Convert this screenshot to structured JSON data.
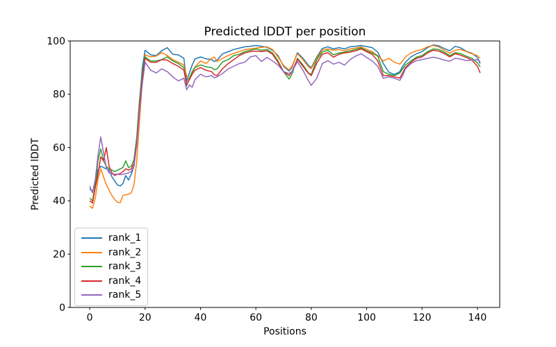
{
  "chart_data": {
    "type": "line",
    "title": "Predicted lDDT per position",
    "xlabel": "Positions",
    "ylabel": "Predicted lDDT",
    "xlim": [
      -7.05,
      148.05
    ],
    "ylim": [
      0,
      100
    ],
    "xticks": [
      0,
      20,
      40,
      60,
      80,
      100,
      120,
      140
    ],
    "yticks": [
      0,
      20,
      40,
      60,
      80,
      100
    ],
    "grid": false,
    "legend_position": "lower left",
    "x": [
      0,
      1,
      2,
      3,
      4,
      5,
      6,
      7,
      8,
      9,
      10,
      11,
      12,
      13,
      14,
      15,
      16,
      17,
      18,
      19,
      20,
      22,
      24,
      26,
      28,
      30,
      32,
      34,
      35,
      36,
      37,
      38,
      40,
      42,
      44,
      45,
      46,
      48,
      50,
      52,
      54,
      56,
      58,
      60,
      62,
      64,
      66,
      68,
      70,
      72,
      73,
      75,
      77,
      79,
      80,
      82,
      84,
      86,
      88,
      90,
      92,
      94,
      96,
      98,
      100,
      102,
      104,
      106,
      108,
      110,
      112,
      113,
      114,
      116,
      118,
      120,
      122,
      124,
      126,
      128,
      130,
      132,
      134,
      136,
      138,
      140,
      141
    ],
    "series": [
      {
        "name": "rank_1",
        "color": "#1f77b4",
        "values": [
          44.5,
          43.5,
          47,
          51.5,
          53,
          52.5,
          52,
          51.5,
          49,
          47.5,
          46,
          45.6,
          46.5,
          49.5,
          47.8,
          50,
          53,
          63,
          77,
          90,
          96.5,
          94.8,
          94.5,
          96.3,
          97.5,
          95,
          94.8,
          93.5,
          84.8,
          88,
          91,
          93.2,
          94,
          93.3,
          93,
          92.3,
          92.8,
          95.2,
          96,
          96.8,
          97.3,
          97.8,
          98,
          98.3,
          98,
          97.6,
          96.5,
          94.5,
          90.5,
          88.7,
          90,
          95.6,
          93.5,
          90.8,
          90,
          94,
          97.2,
          97.8,
          97,
          97.5,
          97,
          97.8,
          98,
          98.3,
          97.9,
          97.5,
          95.8,
          91.5,
          88.3,
          87.4,
          88.5,
          90.5,
          92,
          94,
          95.2,
          96,
          97.5,
          98.5,
          98.2,
          97.2,
          96.3,
          98,
          97.4,
          96.1,
          95.4,
          93.8,
          91.5
        ]
      },
      {
        "name": "rank_2",
        "color": "#ff7f0e",
        "values": [
          38,
          37.2,
          41,
          48,
          52,
          49,
          46,
          44,
          42,
          40.5,
          39.5,
          39.3,
          42,
          42.3,
          42.5,
          43,
          46,
          55,
          70,
          85,
          94.8,
          94,
          94.3,
          95.6,
          94.5,
          93,
          92,
          91,
          87,
          85.3,
          88,
          90.2,
          92.5,
          91.5,
          93.5,
          94,
          92.3,
          93.5,
          94.5,
          95.3,
          96,
          96.8,
          97,
          97.3,
          97.6,
          97.8,
          96.8,
          94,
          90.8,
          89.1,
          90.5,
          95.2,
          93,
          90.2,
          89.6,
          93.5,
          96.6,
          97,
          96.5,
          96.8,
          96.3,
          97,
          97.3,
          97.8,
          96.8,
          96,
          94.5,
          92.5,
          93.5,
          92,
          91.3,
          92.5,
          94,
          95.5,
          96.3,
          96.8,
          97.8,
          98.3,
          97.8,
          96.5,
          95.4,
          96.5,
          96.8,
          96,
          95.2,
          94.5,
          93.5
        ]
      },
      {
        "name": "rank_3",
        "color": "#2ca02c",
        "values": [
          41,
          40,
          46,
          55,
          59.5,
          55,
          53,
          52,
          51.5,
          51,
          51.5,
          52,
          52.5,
          55,
          52.5,
          53,
          55.5,
          64,
          78,
          88,
          94,
          92.5,
          92.5,
          93,
          94,
          92.5,
          91.5,
          90,
          83.2,
          86,
          88.5,
          90,
          91,
          90.3,
          90,
          89.2,
          89.5,
          92.2,
          93,
          94.5,
          95,
          96,
          96.5,
          97,
          96.5,
          96.8,
          95.5,
          92.5,
          88.5,
          85.7,
          87.5,
          93.5,
          91,
          88,
          87.4,
          93,
          95.8,
          96.5,
          94.8,
          95.5,
          95.8,
          96.3,
          96.8,
          97.4,
          96.3,
          95.5,
          94.3,
          88.5,
          87.5,
          87,
          88,
          89.5,
          91,
          92.5,
          93.9,
          94.5,
          96,
          97,
          96.8,
          95.8,
          94.5,
          95.6,
          95.2,
          94.3,
          93.5,
          91.8,
          90.3
        ]
      },
      {
        "name": "rank_4",
        "color": "#d62728",
        "values": [
          40,
          39.2,
          45,
          50,
          56.5,
          55,
          60,
          53,
          50.5,
          49.5,
          50,
          50.2,
          51,
          52,
          51.5,
          52,
          54,
          62,
          76,
          86,
          93.5,
          92,
          92,
          93,
          92.8,
          91.5,
          90.5,
          89,
          83.6,
          85.5,
          87.5,
          89,
          90,
          89,
          88.5,
          87.3,
          87,
          89.6,
          91.5,
          93,
          94.5,
          95.5,
          96,
          96.2,
          96,
          96.3,
          95,
          92,
          88.5,
          87,
          88.5,
          93.1,
          90.5,
          87.8,
          87,
          91.7,
          95,
          95.6,
          93.9,
          95,
          95.5,
          95.8,
          96.3,
          97,
          96,
          95,
          92.5,
          87,
          87,
          86.5,
          86.1,
          88,
          90,
          92,
          93.5,
          94,
          95.5,
          96.5,
          96.2,
          95.3,
          94,
          95.2,
          94.6,
          93.8,
          92.8,
          90.5,
          88
        ]
      },
      {
        "name": "rank_5",
        "color": "#9467bd",
        "values": [
          45.5,
          43,
          48,
          57,
          64,
          58,
          52.5,
          50.5,
          50,
          50,
          50,
          49.8,
          50,
          50.2,
          50.5,
          51,
          53,
          61,
          74,
          84,
          92,
          89,
          88,
          89.5,
          88.5,
          86.5,
          85,
          86,
          81.7,
          83.5,
          82.6,
          85.5,
          87.5,
          86.5,
          87,
          86.2,
          86.5,
          87.8,
          89.5,
          90.5,
          91.5,
          92,
          94,
          94.5,
          92.3,
          93.8,
          92.5,
          91,
          88.5,
          87.8,
          88.5,
          92.2,
          89,
          85,
          83.3,
          86,
          91.5,
          92.6,
          91.3,
          92,
          90.9,
          93,
          94.3,
          95.2,
          93.8,
          92.5,
          90.5,
          86,
          86.5,
          86,
          85.2,
          87,
          89.5,
          91.5,
          92.6,
          93,
          93.5,
          93.9,
          93.5,
          92.8,
          92.4,
          93.5,
          93.2,
          92.6,
          92.8,
          93,
          92.3
        ]
      }
    ]
  }
}
